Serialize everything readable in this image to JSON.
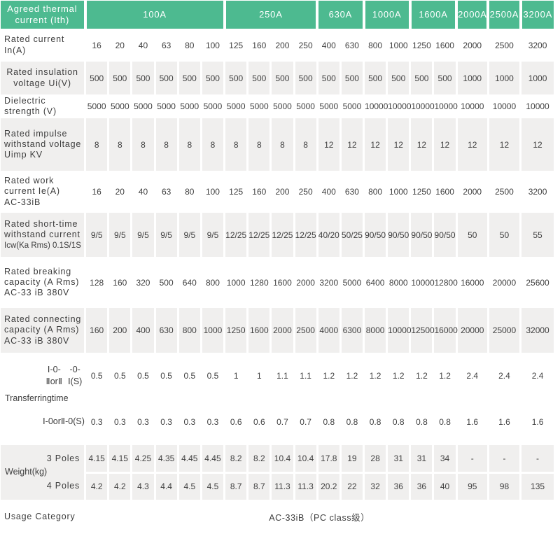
{
  "colors": {
    "header_green": "#4dba90",
    "row_gray": "#f0efee",
    "text": "#3f3f3f",
    "header_text": "#ffffff"
  },
  "table": {
    "corner_label_lines": [
      "Agreed thermal",
      "current (Ith)"
    ],
    "groups": [
      {
        "label": "100A",
        "span": 6
      },
      {
        "label": "250A",
        "span": 4
      },
      {
        "label": "630A",
        "span": 2
      },
      {
        "label": "1000A",
        "span": 2
      },
      {
        "label": "1600A",
        "span": 2
      },
      {
        "label": "2000A",
        "span": 1
      },
      {
        "label": "2500A",
        "span": 1
      },
      {
        "label": "3200A",
        "span": 1
      }
    ],
    "rows": {
      "rated_current": {
        "label_lines": [
          "Rated current In(A)"
        ],
        "values": [
          "16",
          "20",
          "40",
          "63",
          "80",
          "100",
          "125",
          "160",
          "200",
          "250",
          "400",
          "630",
          "800",
          "1000",
          "1250",
          "1600",
          "2000",
          "2500",
          "3200"
        ]
      },
      "insulation": {
        "label_lines": [
          "Rated insulation",
          "voltage Ui(V)"
        ],
        "values": [
          "500",
          "500",
          "500",
          "500",
          "500",
          "500",
          "500",
          "500",
          "500",
          "500",
          "500",
          "500",
          "500",
          "500",
          "500",
          "500",
          "1000",
          "1000",
          "1000"
        ]
      },
      "dielectric": {
        "label_lines": [
          "Dielectric",
          "strength (V)"
        ],
        "values": [
          "5000",
          "5000",
          "5000",
          "5000",
          "5000",
          "5000",
          "5000",
          "5000",
          "5000",
          "5000",
          "5000",
          "5000",
          "10000",
          "10000",
          "10000",
          "10000",
          "10000",
          "10000",
          "10000"
        ]
      },
      "impulse": {
        "label_lines": [
          "Rated impulse",
          "withstand voltage",
          "Uimp KV"
        ],
        "values": [
          "8",
          "8",
          "8",
          "8",
          "8",
          "8",
          "8",
          "8",
          "8",
          "8",
          "12",
          "12",
          "12",
          "12",
          "12",
          "12",
          "12",
          "12",
          "12"
        ]
      },
      "work_current": {
        "label_lines": [
          "Rated work",
          "current Ie(A)",
          "AC-33iB"
        ],
        "values": [
          "16",
          "20",
          "40",
          "63",
          "80",
          "100",
          "125",
          "160",
          "200",
          "250",
          "400",
          "630",
          "800",
          "1000",
          "1250",
          "1600",
          "2000",
          "2500",
          "3200"
        ]
      },
      "short_time": {
        "label_lines": [
          "Rated short-time",
          "withstand current",
          "Icw(Ka Rms) 0.1S/1S"
        ],
        "values": [
          "9/5",
          "9/5",
          "9/5",
          "9/5",
          "9/5",
          "9/5",
          "12/25",
          "12/25",
          "12/25",
          "12/25",
          "40/20",
          "50/25",
          "90/50",
          "90/50",
          "90/50",
          "90/50",
          "50",
          "50",
          "55"
        ]
      },
      "breaking": {
        "label_lines": [
          "Rated breaking",
          "capacity (A Rms)",
          "AC-33 iB 380V"
        ],
        "values": [
          "128",
          "160",
          "320",
          "500",
          "640",
          "800",
          "1000",
          "1280",
          "1600",
          "2000",
          "3200",
          "5000",
          "6400",
          "8000",
          "10000",
          "12800",
          "16000",
          "20000",
          "25600"
        ]
      },
      "connecting": {
        "label_lines": [
          "Rated connecting",
          "capacity (A Rms)",
          "AC-33 iB 380V"
        ],
        "values": [
          "160",
          "200",
          "400",
          "630",
          "800",
          "1000",
          "1250",
          "1600",
          "2000",
          "2500",
          "4000",
          "6300",
          "8000",
          "10000",
          "12500",
          "16000",
          "20000",
          "25000",
          "32000"
        ]
      }
    },
    "transferring": {
      "label_lines": [
        "Transferring",
        "time"
      ],
      "sub_rows": [
        {
          "label_lines": [
            "Ⅰ-0-ⅡorⅡ",
            "-0-Ⅰ(S)"
          ],
          "values": [
            "0.5",
            "0.5",
            "0.5",
            "0.5",
            "0.5",
            "0.5",
            "1",
            "1",
            "1.1",
            "1.1",
            "1.2",
            "1.2",
            "1.2",
            "1.2",
            "1.2",
            "1.2",
            "2.4",
            "2.4",
            "2.4"
          ]
        },
        {
          "label_lines": [
            "Ⅰ-0orⅡ",
            "-0(S)"
          ],
          "values": [
            "0.3",
            "0.3",
            "0.3",
            "0.3",
            "0.3",
            "0.3",
            "0.6",
            "0.6",
            "0.7",
            "0.7",
            "0.8",
            "0.8",
            "0.8",
            "0.8",
            "0.8",
            "0.8",
            "1.6",
            "1.6",
            "1.6"
          ]
        }
      ]
    },
    "weight": {
      "label_lines": [
        "Weight",
        "(kg)"
      ],
      "sub_rows": [
        {
          "label": "3 Poles",
          "values": [
            "4.15",
            "4.15",
            "4.25",
            "4.35",
            "4.45",
            "4.45",
            "8.2",
            "8.2",
            "10.4",
            "10.4",
            "17.8",
            "19",
            "28",
            "31",
            "31",
            "34",
            "-",
            "-",
            "-"
          ]
        },
        {
          "label": "4 Poles",
          "values": [
            "4.2",
            "4.2",
            "4.3",
            "4.4",
            "4.5",
            "4.5",
            "8.7",
            "8.7",
            "11.3",
            "11.3",
            "20.2",
            "22",
            "32",
            "36",
            "36",
            "40",
            "95",
            "98",
            "135"
          ]
        }
      ]
    },
    "usage": {
      "label": "Usage Category",
      "value": "AC-33iB（PC class级）"
    }
  }
}
